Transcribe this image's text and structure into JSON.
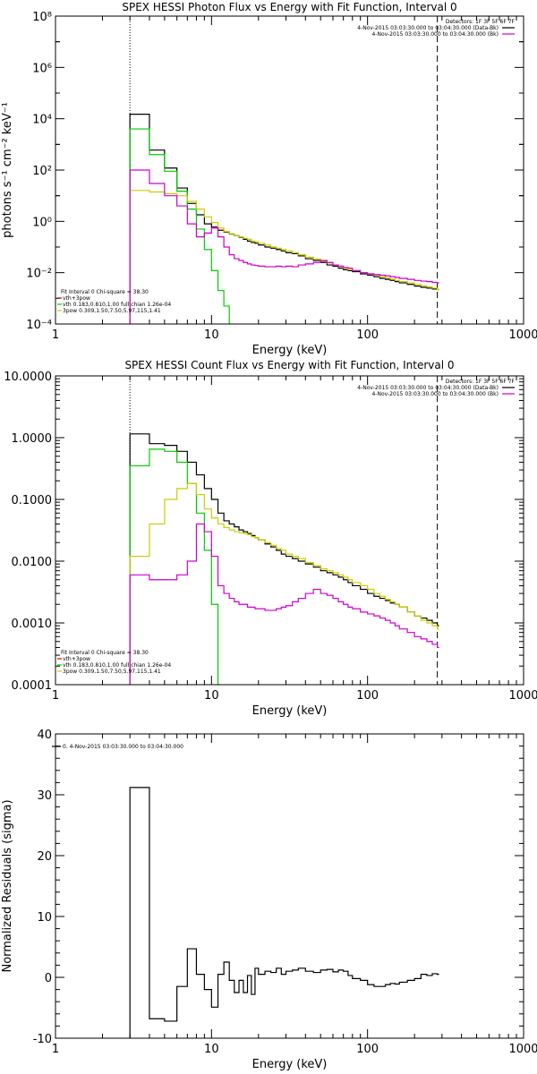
{
  "chart_data": [
    {
      "type": "line",
      "title": "SPEX HESSI Photon Flux vs Energy with Fit Function, Interval 0",
      "xlabel": "Energy (keV)",
      "ylabel": "photons s⁻¹ cm⁻² keV⁻¹",
      "xscale": "log",
      "yscale": "log",
      "xlim": [
        1,
        1000
      ],
      "ylim": [
        0.0001,
        100000000
      ],
      "x_ticks": [
        "1",
        "10",
        "100",
        "1000"
      ],
      "y_ticks": [
        "10⁻⁴",
        "10⁻²",
        "10⁰",
        "10²",
        "10⁴",
        "10⁶",
        "10⁸"
      ],
      "y_tick_values": [
        0.0001,
        0.01,
        1,
        100,
        10000,
        1000000,
        100000000
      ],
      "vlines": [
        3,
        280
      ],
      "header_lines": [
        {
          "text": "Detectors: 1F 3F 5F 6F 7F",
          "swatch": false
        },
        {
          "text": "4-Nov-2015 03:03:30.000 to 03:04:30.000 (Data-Bk)",
          "swatch": true,
          "color": "#000000"
        },
        {
          "text": "4-Nov-2015 03:03:30.000 to 03:04:30.000 (Bk)",
          "swatch": true,
          "color": "#cc00cc"
        }
      ],
      "legend_lines": [
        {
          "text": "Fit Interval 0   Chi-square = 38.30",
          "color": null
        },
        {
          "text": "vth+3pow",
          "color": "#cc0000"
        },
        {
          "text": "vth 0.183,0.810,1.00  full chian 1.26e-04",
          "color": "#00cc00"
        },
        {
          "text": "3pow 0.309,1.50,7.50,5.97,115,1.41",
          "color": "#cccc00"
        }
      ],
      "series": [
        {
          "color": "#000000",
          "x": [
            3,
            3.5,
            4,
            4.5,
            5,
            5.5,
            6,
            6.5,
            7,
            7.5,
            8,
            8.5,
            9,
            9.5,
            10,
            11,
            12,
            13,
            14,
            15,
            16,
            17,
            18,
            19,
            20,
            22,
            24,
            26,
            28,
            30,
            33,
            36,
            40,
            45,
            50,
            55,
            60,
            65,
            70,
            75,
            80,
            90,
            100,
            110,
            120,
            130,
            140,
            150,
            160,
            180,
            200,
            220,
            240,
            260,
            280
          ],
          "values": [
            15000,
            15000,
            600,
            600,
            120,
            120,
            20,
            20,
            5,
            5,
            1.8,
            1.8,
            0.8,
            0.8,
            0.6,
            0.45,
            0.38,
            0.32,
            0.28,
            0.24,
            0.2,
            0.17,
            0.15,
            0.14,
            0.12,
            0.1,
            0.09,
            0.08,
            0.07,
            0.06,
            0.055,
            0.045,
            0.035,
            0.03,
            0.025,
            0.02,
            0.018,
            0.015,
            0.013,
            0.012,
            0.011,
            0.009,
            0.008,
            0.007,
            0.006,
            0.0055,
            0.005,
            0.0045,
            0.004,
            0.0035,
            0.003,
            0.0027,
            0.0025,
            0.0023,
            0.0022
          ]
        },
        {
          "color": "#00cc00",
          "x": [
            3,
            3.5,
            4,
            4.5,
            5,
            5.5,
            6,
            6.5,
            7,
            7.5,
            8,
            8.5,
            9,
            9.5,
            10,
            11,
            12,
            13
          ],
          "values": [
            4000,
            4000,
            400,
            400,
            90,
            90,
            15,
            15,
            3,
            3,
            0.5,
            0.5,
            0.08,
            0.08,
            0.012,
            0.002,
            0.0005,
            0.0001
          ]
        },
        {
          "color": "#cccc00",
          "x": [
            3,
            3.5,
            4,
            4.5,
            5,
            5.5,
            6,
            6.5,
            7,
            7.5,
            8,
            8.5,
            9,
            9.5,
            10,
            11,
            12,
            13,
            14,
            15,
            16,
            17,
            18,
            19,
            20,
            22,
            24,
            26,
            28,
            30,
            33,
            36,
            40,
            45,
            50,
            55,
            60,
            65,
            70,
            75,
            80,
            90,
            100,
            110,
            120,
            130,
            140,
            150,
            160,
            180,
            200,
            220,
            240,
            260,
            280
          ],
          "values": [
            16,
            16,
            14,
            14,
            12,
            12,
            10,
            10,
            6,
            6,
            3,
            3,
            1.5,
            1.5,
            0.9,
            0.55,
            0.4,
            0.33,
            0.28,
            0.25,
            0.22,
            0.2,
            0.17,
            0.16,
            0.14,
            0.12,
            0.1,
            0.09,
            0.08,
            0.07,
            0.06,
            0.05,
            0.04,
            0.034,
            0.028,
            0.024,
            0.02,
            0.017,
            0.015,
            0.013,
            0.012,
            0.01,
            0.009,
            0.008,
            0.007,
            0.0062,
            0.0056,
            0.005,
            0.0045,
            0.004,
            0.0035,
            0.0031,
            0.0028,
            0.0025,
            0.0022
          ]
        },
        {
          "color": "#cc00cc",
          "x": [
            3,
            3.5,
            4,
            4.5,
            5,
            5.5,
            6,
            6.5,
            7,
            7.5,
            8,
            8.5,
            9,
            9.5,
            10,
            11,
            12,
            13,
            14,
            15,
            16,
            17,
            18,
            19,
            20,
            22,
            24,
            26,
            28,
            30,
            33,
            36,
            40,
            45,
            50,
            55,
            60,
            65,
            70,
            75,
            80,
            90,
            100,
            110,
            120,
            130,
            140,
            150,
            160,
            180,
            200,
            220,
            240,
            260,
            280
          ],
          "values": [
            100,
            100,
            30,
            30,
            10,
            10,
            4,
            4,
            0.8,
            0.8,
            0.25,
            0.25,
            0.35,
            0.35,
            0.55,
            0.25,
            0.1,
            0.05,
            0.035,
            0.03,
            0.025,
            0.022,
            0.02,
            0.019,
            0.018,
            0.017,
            0.017,
            0.018,
            0.017,
            0.018,
            0.017,
            0.02,
            0.022,
            0.025,
            0.03,
            0.025,
            0.02,
            0.018,
            0.016,
            0.015,
            0.012,
            0.01,
            0.009,
            0.0085,
            0.008,
            0.0075,
            0.007,
            0.0065,
            0.006,
            0.0055,
            0.005,
            0.0047,
            0.0045,
            0.0042,
            0.004
          ]
        }
      ]
    },
    {
      "type": "line",
      "title": "SPEX HESSI Count Flux vs Energy with Fit Function, Interval 0",
      "xlabel": "Energy (keV)",
      "ylabel": "",
      "xscale": "log",
      "yscale": "log",
      "xlim": [
        1,
        1000
      ],
      "ylim": [
        0.0001,
        10
      ],
      "x_ticks": [
        "1",
        "10",
        "100",
        "1000"
      ],
      "y_ticks": [
        "0.0001",
        "0.0010",
        "0.0100",
        "0.1000",
        "1.0000",
        "10.0000"
      ],
      "y_tick_values": [
        0.0001,
        0.001,
        0.01,
        0.1,
        1,
        10
      ],
      "vlines": [
        3,
        280
      ],
      "header_lines": [
        {
          "text": "Detectors: 1F 3F 5F 6F 7F",
          "swatch": false
        },
        {
          "text": "4-Nov-2015 03:03:30.000 to 03:04:30.000 (Data-Bk)",
          "swatch": true,
          "color": "#000000"
        },
        {
          "text": "4-Nov-2015 03:03:30.000 to 03:04:30.000 (Bk)",
          "swatch": true,
          "color": "#cc00cc"
        }
      ],
      "legend_lines": [
        {
          "text": "Fit Interval 0   Chi-square = 38.30",
          "color": null
        },
        {
          "text": "vth+3pow",
          "color": "#cc0000"
        },
        {
          "text": "vth 0.183,0.810,1.00  full chian 1.26e-04",
          "color": "#00cc00"
        },
        {
          "text": "3pow 0.309,1.50,7.50,5.97,115,1.41",
          "color": "#cccc00"
        }
      ],
      "series": [
        {
          "color": "#000000",
          "x": [
            3,
            3.5,
            4,
            4.5,
            5,
            5.5,
            6,
            6.5,
            7,
            7.5,
            8,
            8.5,
            9,
            9.5,
            10,
            11,
            12,
            13,
            14,
            15,
            16,
            17,
            18,
            19,
            20,
            22,
            24,
            26,
            28,
            30,
            33,
            36,
            40,
            45,
            50,
            55,
            60,
            65,
            70,
            75,
            80,
            90,
            100,
            110,
            120,
            130,
            140,
            150,
            160,
            180,
            200,
            220,
            240,
            260,
            280
          ],
          "values": [
            1.15,
            1.15,
            0.8,
            0.8,
            0.75,
            0.75,
            0.6,
            0.6,
            0.4,
            0.4,
            0.25,
            0.25,
            0.15,
            0.15,
            0.1,
            0.06,
            0.045,
            0.04,
            0.036,
            0.032,
            0.03,
            0.028,
            0.026,
            0.024,
            0.022,
            0.019,
            0.017,
            0.015,
            0.013,
            0.012,
            0.011,
            0.01,
            0.009,
            0.008,
            0.007,
            0.0065,
            0.006,
            0.0055,
            0.005,
            0.0045,
            0.004,
            0.0035,
            0.003,
            0.0027,
            0.0025,
            0.0023,
            0.0021,
            0.002,
            0.0018,
            0.0015,
            0.0013,
            0.0012,
            0.0011,
            0.001,
            0.0009
          ]
        },
        {
          "color": "#00cc00",
          "x": [
            3,
            3.5,
            4,
            4.5,
            5,
            5.5,
            6,
            6.5,
            7,
            7.5,
            8,
            8.5,
            9,
            9.5,
            10,
            11
          ],
          "values": [
            0.35,
            0.35,
            0.65,
            0.65,
            0.6,
            0.6,
            0.4,
            0.4,
            0.18,
            0.18,
            0.06,
            0.06,
            0.015,
            0.015,
            0.002,
            0.0001
          ]
        },
        {
          "color": "#cccc00",
          "x": [
            3,
            3.5,
            4,
            4.5,
            5,
            5.5,
            6,
            6.5,
            7,
            7.5,
            8,
            8.5,
            9,
            9.5,
            10,
            11,
            12,
            13,
            14,
            15,
            16,
            17,
            18,
            19,
            20,
            22,
            24,
            26,
            28,
            30,
            33,
            36,
            40,
            45,
            50,
            55,
            60,
            65,
            70,
            75,
            80,
            90,
            100,
            110,
            120,
            130,
            140,
            150,
            160,
            180,
            200,
            220,
            240,
            260,
            280
          ],
          "values": [
            0.012,
            0.012,
            0.04,
            0.04,
            0.1,
            0.1,
            0.15,
            0.15,
            0.18,
            0.18,
            0.12,
            0.12,
            0.07,
            0.07,
            0.05,
            0.04,
            0.035,
            0.032,
            0.03,
            0.029,
            0.028,
            0.027,
            0.025,
            0.024,
            0.022,
            0.02,
            0.018,
            0.016,
            0.015,
            0.013,
            0.012,
            0.011,
            0.0095,
            0.0085,
            0.0075,
            0.007,
            0.0065,
            0.006,
            0.0055,
            0.005,
            0.0045,
            0.004,
            0.0035,
            0.003,
            0.0027,
            0.0024,
            0.0022,
            0.002,
            0.0018,
            0.0015,
            0.0013,
            0.0011,
            0.001,
            0.0009,
            0.0008
          ]
        },
        {
          "color": "#cc00cc",
          "x": [
            3,
            3.5,
            4,
            4.5,
            5,
            5.5,
            6,
            6.5,
            7,
            7.5,
            8,
            8.5,
            9,
            9.5,
            10,
            11,
            12,
            13,
            14,
            15,
            16,
            17,
            18,
            19,
            20,
            22,
            24,
            26,
            28,
            30,
            33,
            36,
            40,
            45,
            50,
            55,
            60,
            65,
            70,
            75,
            80,
            90,
            100,
            110,
            120,
            130,
            140,
            150,
            160,
            180,
            200,
            220,
            240,
            260,
            280
          ],
          "values": [
            0.006,
            0.006,
            0.005,
            0.005,
            0.005,
            0.005,
            0.006,
            0.006,
            0.01,
            0.01,
            0.04,
            0.04,
            0.03,
            0.03,
            0.012,
            0.004,
            0.003,
            0.0025,
            0.0022,
            0.002,
            0.002,
            0.0018,
            0.0018,
            0.0017,
            0.0017,
            0.0016,
            0.0016,
            0.0017,
            0.0018,
            0.0019,
            0.0022,
            0.0025,
            0.003,
            0.0035,
            0.003,
            0.0028,
            0.0025,
            0.0022,
            0.002,
            0.0018,
            0.0017,
            0.0015,
            0.0014,
            0.0013,
            0.0012,
            0.0011,
            0.001,
            0.0009,
            0.0008,
            0.0007,
            0.0006,
            0.00055,
            0.0005,
            0.00045,
            0.0004
          ]
        }
      ]
    },
    {
      "type": "line",
      "title": "",
      "xlabel": "Energy (keV)",
      "ylabel": "Normalized Residuals (sigma)",
      "xscale": "log",
      "yscale": "linear",
      "xlim": [
        1,
        1000
      ],
      "ylim": [
        -10,
        40
      ],
      "x_ticks": [
        "1",
        "10",
        "100",
        "1000"
      ],
      "y_ticks": [
        "-10",
        "0",
        "10",
        "20",
        "30",
        "40"
      ],
      "y_tick_values": [
        -10,
        0,
        10,
        20,
        30,
        40
      ],
      "vlines": [],
      "header_lines": [],
      "legend_lines": [
        {
          "text": "0. 4-Nov-2015 03:03:30.000 to 03:04:30.000",
          "color": "#000000"
        }
      ],
      "series": [
        {
          "color": "#000000",
          "x": [
            3,
            3.5,
            4,
            4.5,
            5,
            5.5,
            6,
            6.5,
            7,
            7.5,
            8,
            8.5,
            9,
            9.5,
            10,
            11,
            12,
            13,
            14,
            15,
            16,
            17,
            18,
            19,
            20,
            22,
            24,
            26,
            28,
            30,
            33,
            36,
            40,
            45,
            50,
            55,
            60,
            65,
            70,
            75,
            80,
            90,
            100,
            110,
            120,
            130,
            140,
            150,
            160,
            180,
            200,
            220,
            240,
            260,
            280
          ],
          "values": [
            31.2,
            31.2,
            -6.8,
            -6.8,
            -7.2,
            -7.2,
            -1.5,
            -1.5,
            4.7,
            4.7,
            0.5,
            0.5,
            -2,
            -2,
            -4.9,
            0.5,
            2.5,
            -0.5,
            -2.5,
            -0.5,
            -2.5,
            0.3,
            -2.8,
            1.5,
            0.5,
            1.0,
            0.8,
            1.5,
            0.5,
            1.0,
            1.2,
            1.5,
            1.0,
            0.8,
            1.2,
            1.3,
            0.9,
            1.2,
            1.0,
            0.3,
            -0.2,
            -0.5,
            -1.2,
            -1.5,
            -1.5,
            -1.2,
            -1.0,
            -1.1,
            -0.8,
            -0.5,
            -0.2,
            0.5,
            0.3,
            0.6,
            0.5
          ]
        }
      ]
    }
  ]
}
